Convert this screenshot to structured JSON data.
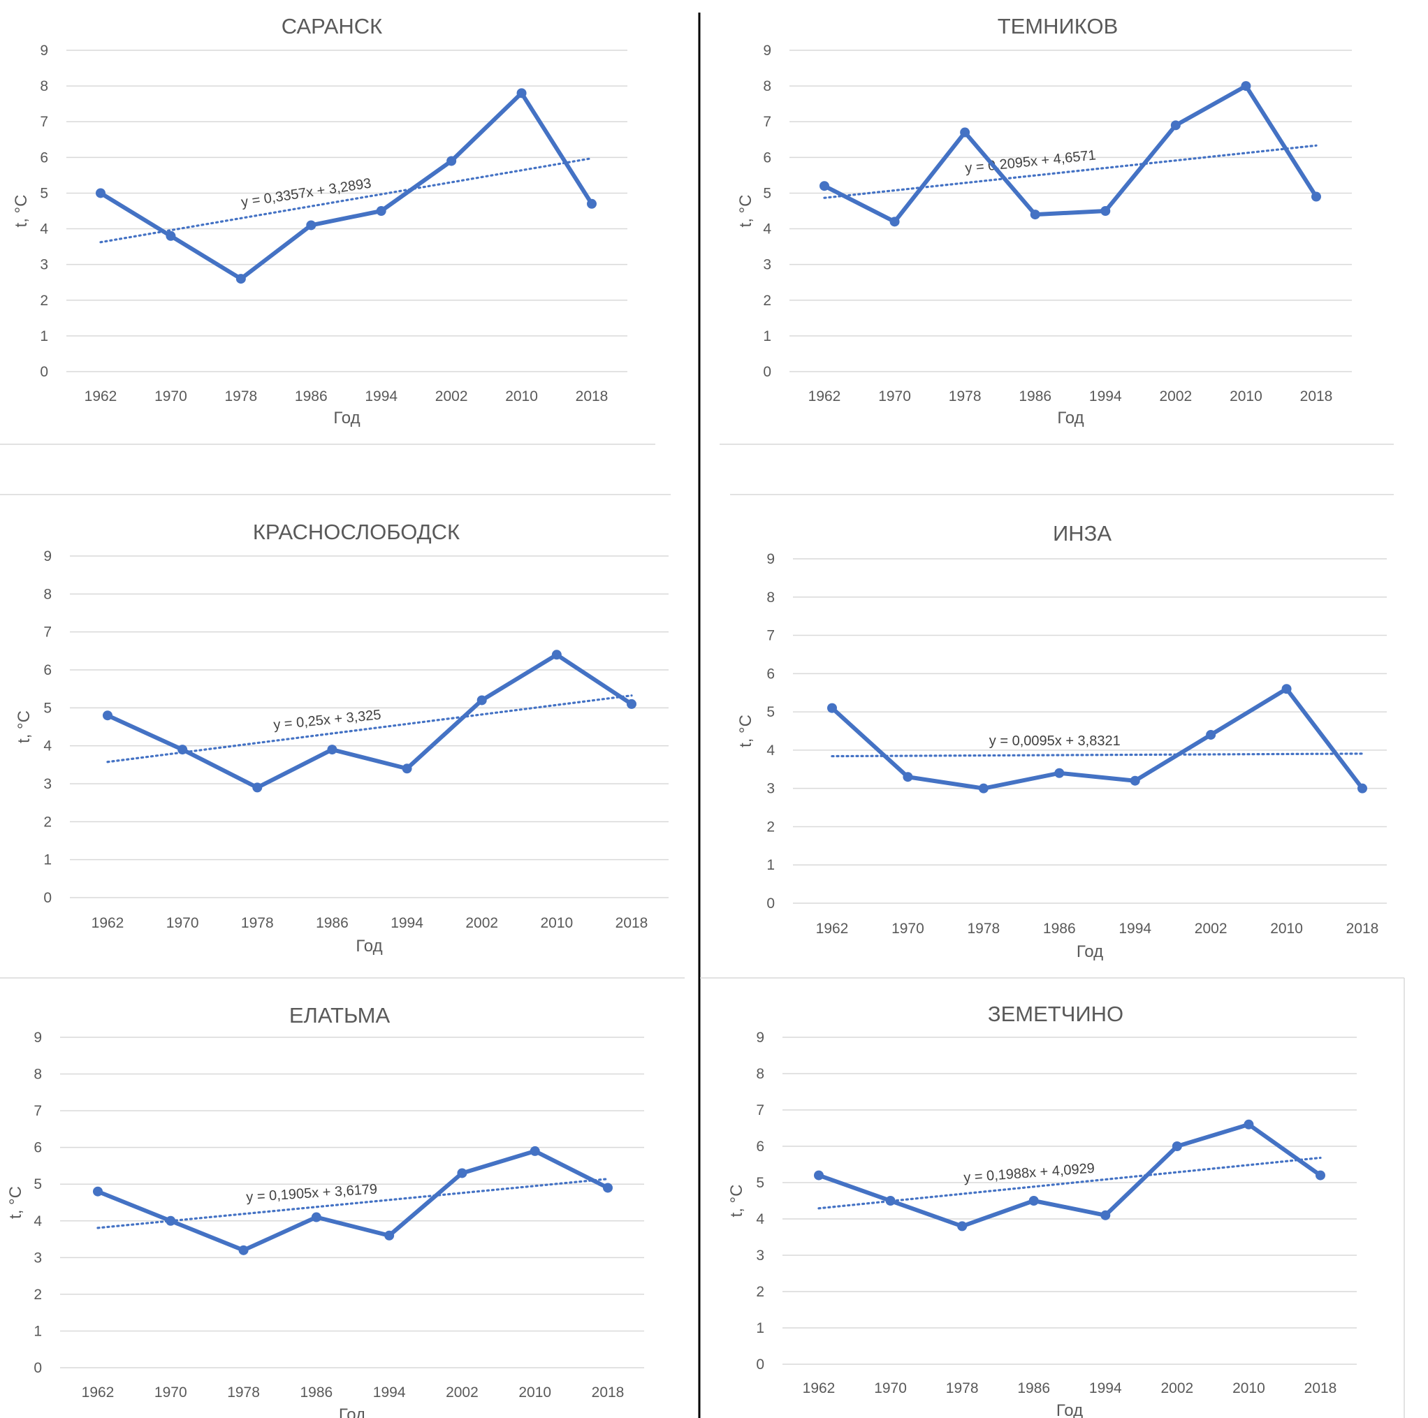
{
  "chart_data": [
    {
      "type": "line",
      "title": "САРАНСК",
      "xlabel": "Год",
      "ylabel": "t, °C",
      "categories": [
        "1962",
        "1970",
        "1978",
        "1986",
        "1994",
        "2002",
        "2010",
        "2018"
      ],
      "values": [
        5.0,
        3.8,
        2.6,
        4.1,
        4.5,
        5.9,
        7.8,
        4.7
      ],
      "ylim": [
        0,
        9
      ],
      "yticks": [
        "0",
        "1",
        "2",
        "3",
        "4",
        "5",
        "6",
        "7",
        "8",
        "9"
      ],
      "grid": true,
      "trendline": {
        "equation": "y = 0,3357x + 3,2893",
        "slope": 0.3357,
        "intercept": 3.2893
      }
    },
    {
      "type": "line",
      "title": "ТЕМНИКОВ",
      "xlabel": "Год",
      "ylabel": "t, °C",
      "categories": [
        "1962",
        "1970",
        "1978",
        "1986",
        "1994",
        "2002",
        "2010",
        "2018"
      ],
      "values": [
        5.2,
        4.2,
        6.7,
        4.4,
        4.5,
        6.9,
        8.0,
        4.9
      ],
      "ylim": [
        0,
        9
      ],
      "yticks": [
        "0",
        "1",
        "2",
        "3",
        "4",
        "5",
        "6",
        "7",
        "8",
        "9"
      ],
      "grid": true,
      "trendline": {
        "equation": "y = 0,2095x + 4,6571",
        "slope": 0.2095,
        "intercept": 4.6571
      }
    },
    {
      "type": "line",
      "title": "КРАСНОСЛОБОДСК",
      "xlabel": "Год",
      "ylabel": "t, °C",
      "categories": [
        "1962",
        "1970",
        "1978",
        "1986",
        "1994",
        "2002",
        "2010",
        "2018"
      ],
      "values": [
        4.8,
        3.9,
        2.9,
        3.9,
        3.4,
        5.2,
        6.4,
        5.1
      ],
      "ylim": [
        0,
        9
      ],
      "yticks": [
        "0",
        "1",
        "2",
        "3",
        "4",
        "5",
        "6",
        "7",
        "8",
        "9"
      ],
      "grid": true,
      "trendline": {
        "equation": "y = 0,25x + 3,325",
        "slope": 0.25,
        "intercept": 3.325
      }
    },
    {
      "type": "line",
      "title": "ИНЗА",
      "xlabel": "Год",
      "ylabel": "t, °C",
      "categories": [
        "1962",
        "1970",
        "1978",
        "1986",
        "1994",
        "2002",
        "2010",
        "2018"
      ],
      "values": [
        5.1,
        3.3,
        3.0,
        3.4,
        3.2,
        4.4,
        5.6,
        3.0
      ],
      "ylim": [
        0,
        9
      ],
      "yticks": [
        "0",
        "1",
        "2",
        "3",
        "4",
        "5",
        "6",
        "7",
        "8",
        "9"
      ],
      "grid": true,
      "trendline": {
        "equation": "y = 0,0095x + 3,8321",
        "slope": 0.0095,
        "intercept": 3.8321
      }
    },
    {
      "type": "line",
      "title": "ЕЛАТЬМА",
      "xlabel": "Год",
      "ylabel": "t, °C",
      "categories": [
        "1962",
        "1970",
        "1978",
        "1986",
        "1994",
        "2002",
        "2010",
        "2018"
      ],
      "values": [
        4.8,
        4.0,
        3.2,
        4.1,
        3.6,
        5.3,
        5.9,
        4.9
      ],
      "ylim": [
        0,
        9
      ],
      "yticks": [
        "0",
        "1",
        "2",
        "3",
        "4",
        "5",
        "6",
        "7",
        "8",
        "9"
      ],
      "grid": true,
      "trendline": {
        "equation": "y = 0,1905x + 3,6179",
        "slope": 0.1905,
        "intercept": 3.6179
      }
    },
    {
      "type": "line",
      "title": "ЗЕМЕТЧИНО",
      "xlabel": "Год",
      "ylabel": "t, °C",
      "categories": [
        "1962",
        "1970",
        "1978",
        "1986",
        "1994",
        "2002",
        "2010",
        "2018"
      ],
      "values": [
        5.2,
        4.5,
        3.8,
        4.5,
        4.1,
        6.0,
        6.6,
        5.2
      ],
      "ylim": [
        0,
        9
      ],
      "yticks": [
        "0",
        "1",
        "2",
        "3",
        "4",
        "5",
        "6",
        "7",
        "8",
        "9"
      ],
      "grid": true,
      "trendline": {
        "equation": "y = 0,1988x + 4,0929",
        "slope": 0.1988,
        "intercept": 4.0929
      }
    }
  ]
}
